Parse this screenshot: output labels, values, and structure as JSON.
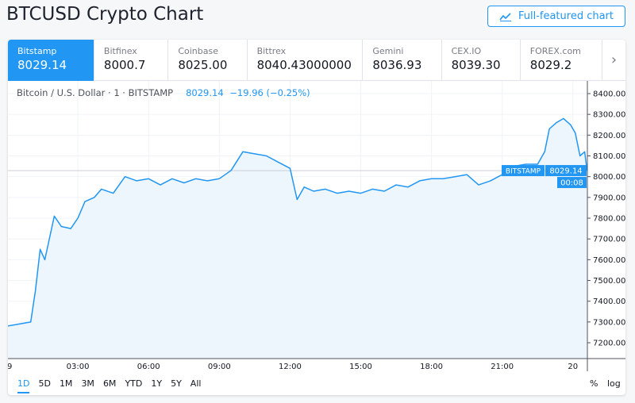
{
  "header": {
    "title": "BTCUSD Crypto Chart",
    "full_chart_label": "Full-featured chart"
  },
  "exchanges": [
    {
      "name": "Bitstamp",
      "price": "8029.14",
      "active": true
    },
    {
      "name": "Bitfinex",
      "price": "8000.7"
    },
    {
      "name": "Coinbase",
      "price": "8025.00"
    },
    {
      "name": "Bittrex",
      "price": "8040.43000000"
    },
    {
      "name": "Gemini",
      "price": "8036.93"
    },
    {
      "name": "CEX.IO",
      "price": "8039.30"
    },
    {
      "name": "FOREX.com",
      "price": "8029.2"
    }
  ],
  "legend": {
    "symbol": "Bitcoin / U.S. Dollar · 1 · BITSTAMP",
    "price": "8029.14",
    "change": "−19.96 (−0.25%)"
  },
  "price_label": {
    "exchange": "BITSTAMP",
    "price": "8029.14",
    "countdown": "00:08"
  },
  "colors": {
    "accent": "#2196f3",
    "line": "#2196f3",
    "area": "#eef6fd"
  },
  "ranges": [
    "1D",
    "5D",
    "1M",
    "3M",
    "6M",
    "YTD",
    "1Y",
    "5Y",
    "All"
  ],
  "active_range": "1D",
  "scale_options": {
    "percent": "%",
    "log": "log"
  },
  "chart_data": {
    "type": "area",
    "ylim": [
      7150,
      8450
    ],
    "y_ticks": [
      "7200.00",
      "7300.00",
      "7400.00",
      "7500.00",
      "7600.00",
      "7700.00",
      "7800.00",
      "7900.00",
      "8000.00",
      "8100.00",
      "8200.00",
      "8300.00",
      "8400.00"
    ],
    "x_ticks": [
      {
        "h": 0,
        "label": "9"
      },
      {
        "h": 3,
        "label": "03:00"
      },
      {
        "h": 6,
        "label": "06:00"
      },
      {
        "h": 9,
        "label": "09:00"
      },
      {
        "h": 12,
        "label": "12:00"
      },
      {
        "h": 15,
        "label": "15:00"
      },
      {
        "h": 18,
        "label": "18:00"
      },
      {
        "h": 21,
        "label": "21:00"
      },
      {
        "h": 24,
        "label": "20"
      }
    ],
    "last_price": 8029.14,
    "series": [
      [
        0,
        7280
      ],
      [
        0.5,
        7290
      ],
      [
        1.0,
        7300
      ],
      [
        1.2,
        7450
      ],
      [
        1.4,
        7650
      ],
      [
        1.6,
        7600
      ],
      [
        2.0,
        7810
      ],
      [
        2.3,
        7760
      ],
      [
        2.7,
        7750
      ],
      [
        3.0,
        7800
      ],
      [
        3.3,
        7880
      ],
      [
        3.7,
        7900
      ],
      [
        4.0,
        7940
      ],
      [
        4.5,
        7920
      ],
      [
        5.0,
        8000
      ],
      [
        5.5,
        7980
      ],
      [
        6.0,
        7990
      ],
      [
        6.5,
        7960
      ],
      [
        7.0,
        7990
      ],
      [
        7.5,
        7970
      ],
      [
        8.0,
        7990
      ],
      [
        8.5,
        7980
      ],
      [
        9.0,
        7990
      ],
      [
        9.5,
        8030
      ],
      [
        10.0,
        8120
      ],
      [
        10.5,
        8110
      ],
      [
        11.0,
        8100
      ],
      [
        11.5,
        8070
      ],
      [
        12.0,
        8040
      ],
      [
        12.3,
        7890
      ],
      [
        12.6,
        7950
      ],
      [
        13.0,
        7930
      ],
      [
        13.5,
        7940
      ],
      [
        14.0,
        7920
      ],
      [
        14.5,
        7930
      ],
      [
        15.0,
        7920
      ],
      [
        15.5,
        7940
      ],
      [
        16.0,
        7930
      ],
      [
        16.5,
        7960
      ],
      [
        17.0,
        7950
      ],
      [
        17.5,
        7980
      ],
      [
        18.0,
        7990
      ],
      [
        18.5,
        7990
      ],
      [
        19.0,
        8000
      ],
      [
        19.5,
        8010
      ],
      [
        20.0,
        7960
      ],
      [
        20.5,
        7980
      ],
      [
        21.0,
        8010
      ],
      [
        21.5,
        8050
      ],
      [
        22.0,
        8060
      ],
      [
        22.5,
        8060
      ],
      [
        22.8,
        8120
      ],
      [
        23.0,
        8230
      ],
      [
        23.3,
        8260
      ],
      [
        23.6,
        8280
      ],
      [
        23.9,
        8250
      ],
      [
        24.1,
        8210
      ],
      [
        24.3,
        8100
      ],
      [
        24.5,
        8120
      ],
      [
        24.6,
        8029.14
      ]
    ]
  }
}
